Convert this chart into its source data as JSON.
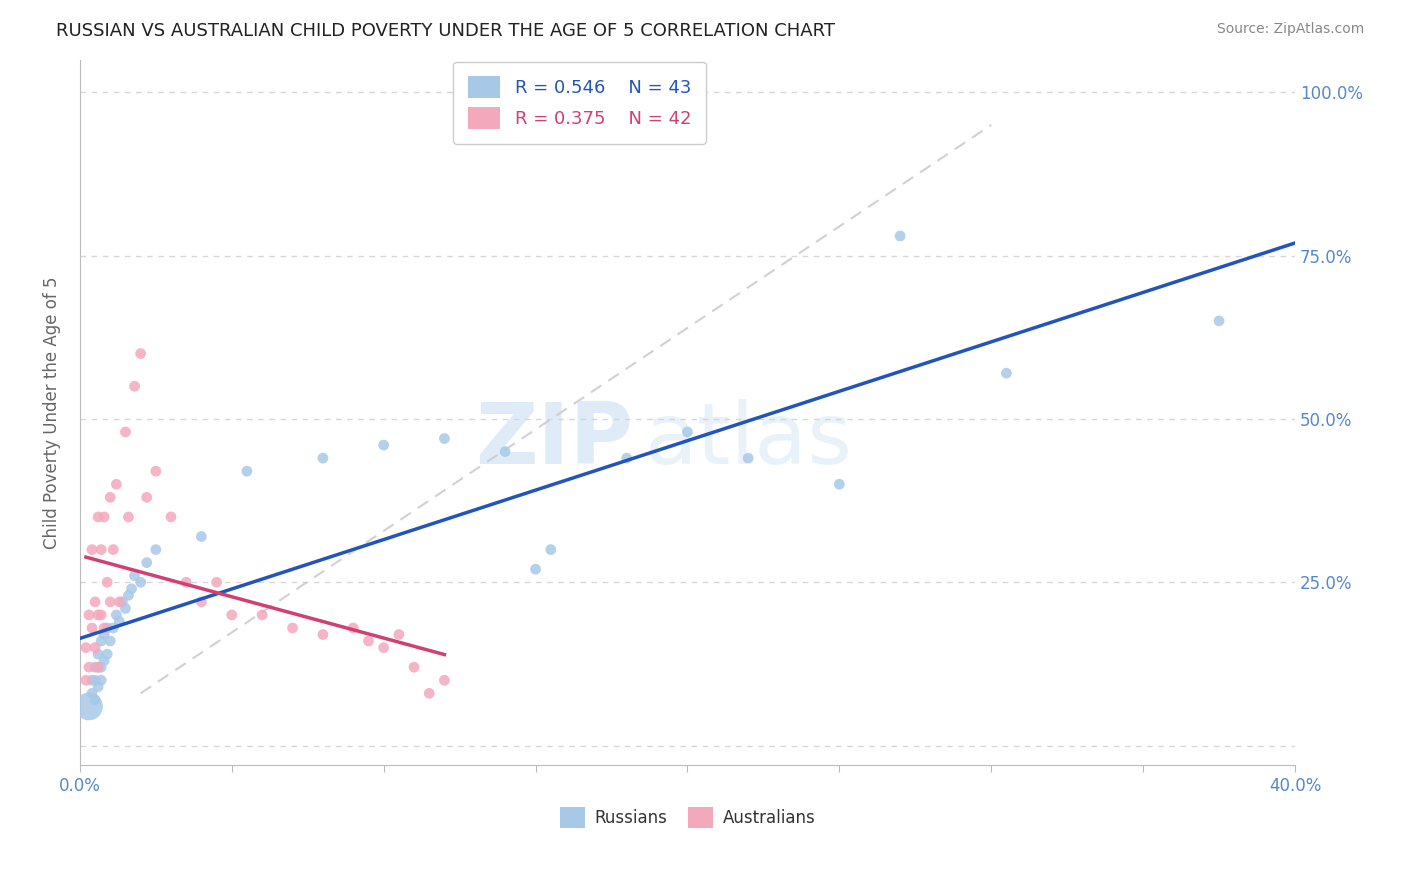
{
  "title": "RUSSIAN VS AUSTRALIAN CHILD POVERTY UNDER THE AGE OF 5 CORRELATION CHART",
  "source": "Source: ZipAtlas.com",
  "ylabel_label": "Child Poverty Under the Age of 5",
  "xlim": [
    0.0,
    0.4
  ],
  "ylim": [
    -0.03,
    1.05
  ],
  "legend_R_russian": "0.546",
  "legend_N_russian": "43",
  "legend_R_australian": "0.375",
  "legend_N_australian": "42",
  "russian_scatter_color": "#A8C8E8",
  "australian_scatter_color": "#F4A8BC",
  "russian_line_color": "#2255BB",
  "australian_line_color": "#D04070",
  "tick_label_color": "#5588CC",
  "ylabel_color": "#666666",
  "title_color": "#222222",
  "source_color": "#888888",
  "background": "#FFFFFF",
  "grid_color": "#CCCCCC",
  "ref_line_color": "#CCCCCC",
  "watermark_color": "#D5E8F5",
  "russians_x": [
    0.003,
    0.004,
    0.004,
    0.005,
    0.005,
    0.005,
    0.006,
    0.006,
    0.006,
    0.007,
    0.007,
    0.007,
    0.008,
    0.008,
    0.009,
    0.009,
    0.01,
    0.011,
    0.012,
    0.013,
    0.014,
    0.015,
    0.016,
    0.017,
    0.018,
    0.02,
    0.022,
    0.025,
    0.04,
    0.055,
    0.08,
    0.1,
    0.12,
    0.14,
    0.15,
    0.155,
    0.18,
    0.2,
    0.22,
    0.25,
    0.27,
    0.305,
    0.375
  ],
  "russians_y": [
    0.06,
    0.08,
    0.1,
    0.07,
    0.1,
    0.12,
    0.09,
    0.12,
    0.14,
    0.1,
    0.12,
    0.16,
    0.13,
    0.17,
    0.14,
    0.18,
    0.16,
    0.18,
    0.2,
    0.19,
    0.22,
    0.21,
    0.23,
    0.24,
    0.26,
    0.25,
    0.28,
    0.3,
    0.32,
    0.42,
    0.44,
    0.46,
    0.47,
    0.45,
    0.27,
    0.3,
    0.44,
    0.48,
    0.44,
    0.4,
    0.78,
    0.57,
    0.65
  ],
  "russians_sizes": [
    400,
    60,
    60,
    60,
    60,
    60,
    60,
    60,
    60,
    60,
    60,
    60,
    60,
    60,
    60,
    60,
    60,
    60,
    60,
    60,
    60,
    60,
    60,
    60,
    60,
    60,
    60,
    60,
    60,
    60,
    60,
    60,
    60,
    60,
    60,
    60,
    60,
    60,
    60,
    60,
    60,
    60,
    60
  ],
  "australians_x": [
    0.002,
    0.002,
    0.003,
    0.003,
    0.004,
    0.004,
    0.005,
    0.005,
    0.006,
    0.006,
    0.006,
    0.007,
    0.007,
    0.008,
    0.008,
    0.009,
    0.01,
    0.01,
    0.011,
    0.012,
    0.013,
    0.015,
    0.016,
    0.018,
    0.02,
    0.022,
    0.025,
    0.03,
    0.035,
    0.04,
    0.045,
    0.05,
    0.06,
    0.07,
    0.08,
    0.09,
    0.095,
    0.1,
    0.105,
    0.11,
    0.115,
    0.12
  ],
  "australians_y": [
    0.1,
    0.15,
    0.12,
    0.2,
    0.18,
    0.3,
    0.15,
    0.22,
    0.12,
    0.2,
    0.35,
    0.2,
    0.3,
    0.18,
    0.35,
    0.25,
    0.22,
    0.38,
    0.3,
    0.4,
    0.22,
    0.48,
    0.35,
    0.55,
    0.6,
    0.38,
    0.42,
    0.35,
    0.25,
    0.22,
    0.25,
    0.2,
    0.2,
    0.18,
    0.17,
    0.18,
    0.16,
    0.15,
    0.17,
    0.12,
    0.08,
    0.1
  ],
  "australians_sizes": [
    60,
    60,
    60,
    60,
    60,
    60,
    60,
    60,
    60,
    60,
    60,
    60,
    60,
    60,
    60,
    60,
    60,
    60,
    60,
    60,
    60,
    60,
    60,
    60,
    60,
    60,
    60,
    60,
    60,
    60,
    60,
    60,
    60,
    60,
    60,
    60,
    60,
    60,
    60,
    60,
    60,
    60
  ],
  "ref_line_x": [
    0.02,
    0.3
  ],
  "ref_line_y": [
    0.08,
    0.95
  ]
}
